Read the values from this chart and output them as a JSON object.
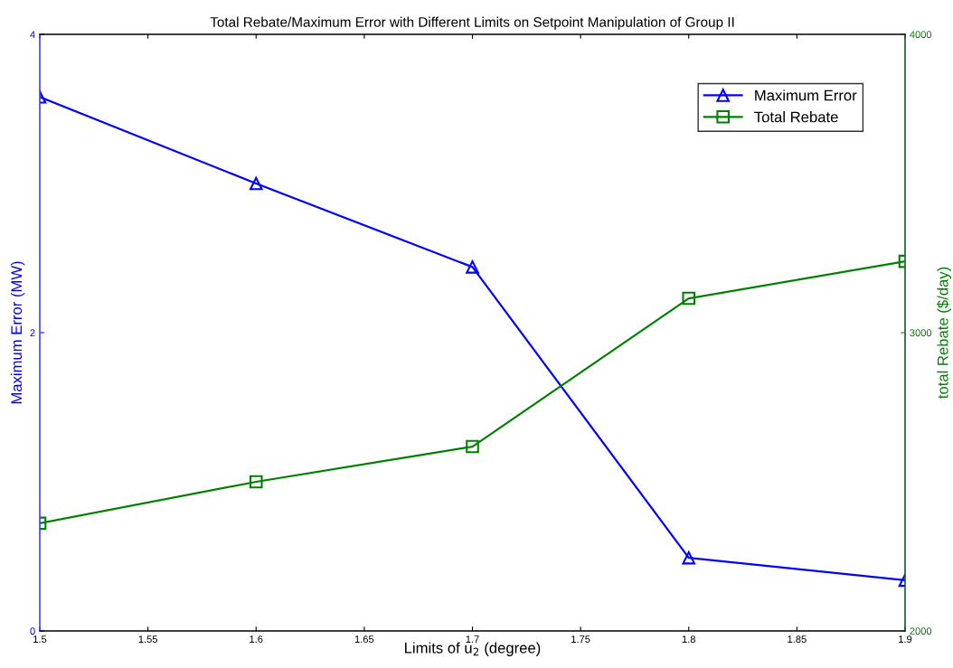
{
  "chart_data": {
    "type": "line",
    "title": "Total Rebate/Maximum Error with Different Limits on Setpoint Manipulation of Group II",
    "xlabel": "Limits of u$_{2}$ (degree)",
    "ylabel": "Maximum Error (MW)",
    "y2label": "total Rebate ($/day)",
    "x": [
      1.5,
      1.6,
      1.7,
      1.8,
      1.9
    ],
    "series": [
      {
        "name": "Maximum Error",
        "color": "#0000ff",
        "marker": "triangle",
        "values": [
          3.58,
          3.0,
          2.44,
          0.49,
          0.34
        ]
      },
      {
        "name": "Total Rebate",
        "color": "#008000",
        "marker": "square",
        "axis": "y2",
        "values": [
          2361,
          2500,
          2618,
          3115,
          3239
        ]
      }
    ],
    "xlim": [
      1.5,
      1.9
    ],
    "xticks": [
      1.5,
      1.55,
      1.6,
      1.65,
      1.7,
      1.75,
      1.8,
      1.85,
      1.9
    ],
    "ylim": [
      0,
      4
    ],
    "yticks": [
      0,
      2,
      4
    ],
    "y2lim": [
      2000,
      4000
    ],
    "y2ticks": [
      2000,
      3000,
      4000
    ],
    "grid": false,
    "legend": "top right",
    "line_style": "solid"
  }
}
